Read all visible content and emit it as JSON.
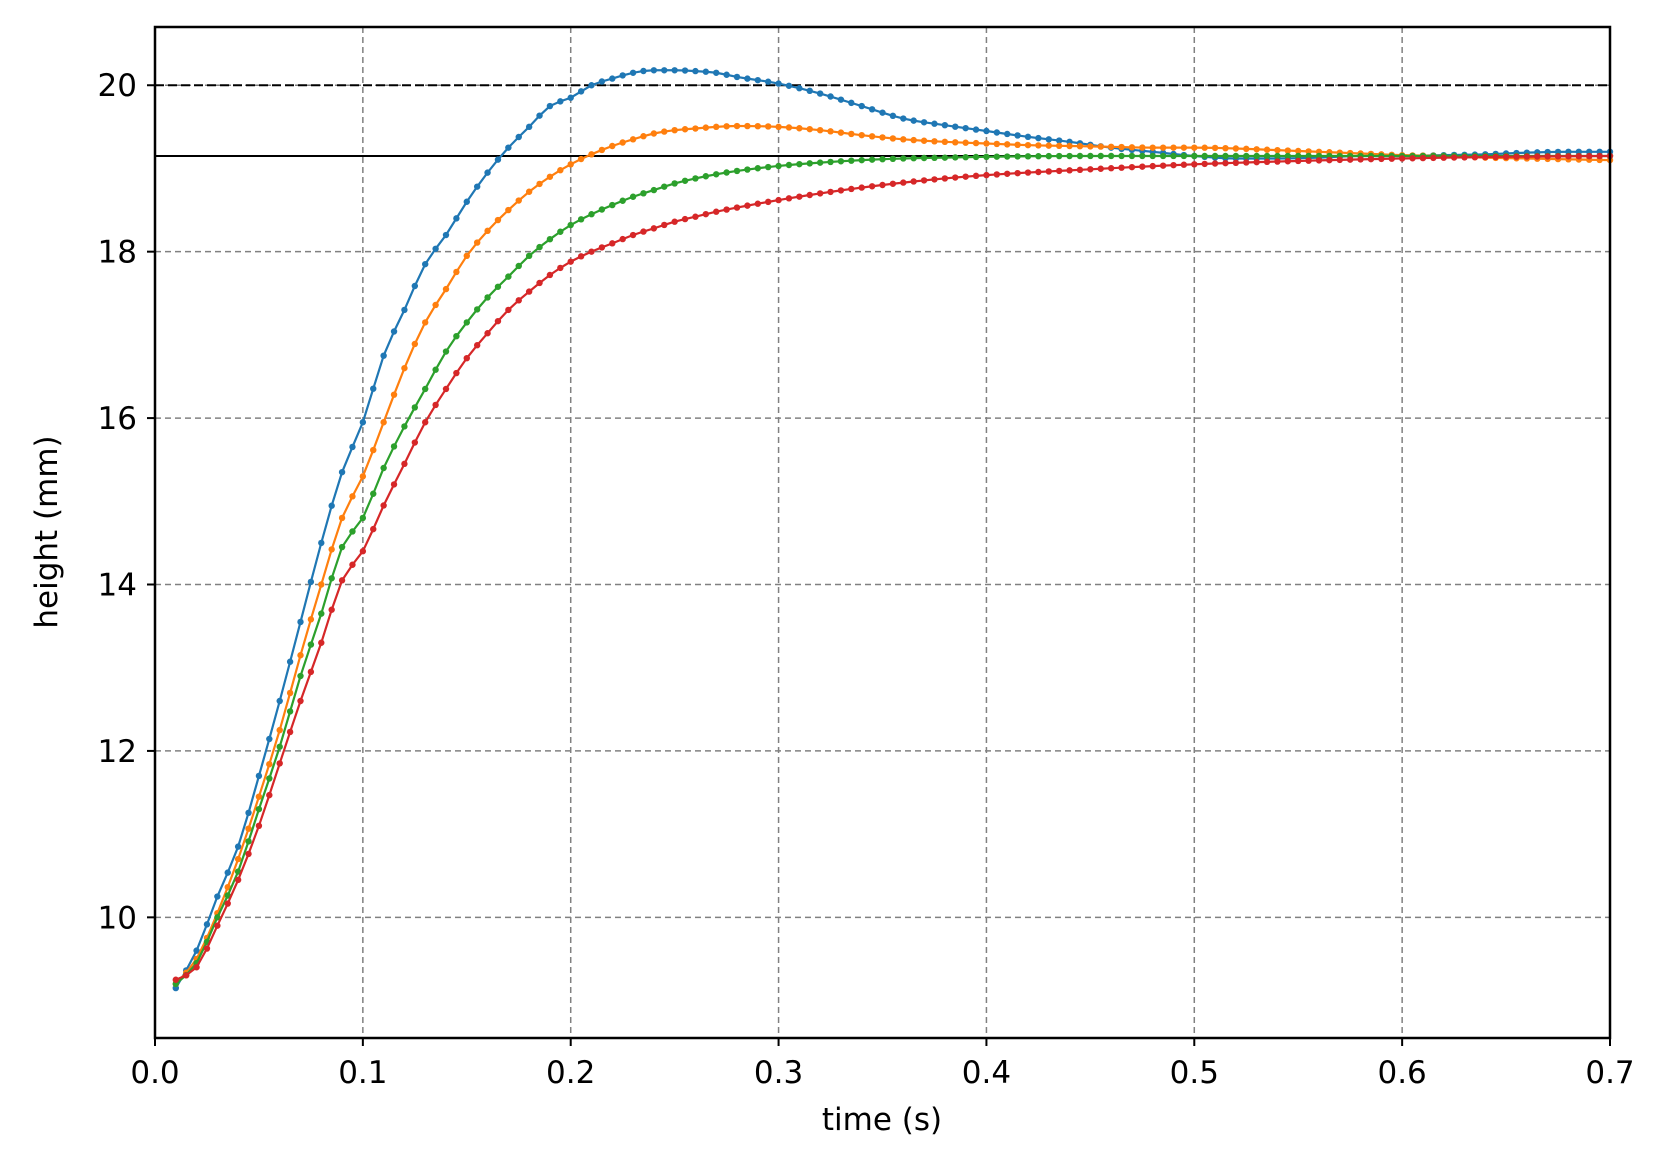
{
  "chart_data": {
    "type": "line",
    "title": "",
    "xlabel": "time (s)",
    "ylabel": "height (mm)",
    "xlim": [
      0.0,
      0.7
    ],
    "ylim": [
      8.55,
      20.7
    ],
    "x_ticks": [
      "0.0",
      "0.1",
      "0.2",
      "0.3",
      "0.4",
      "0.5",
      "0.6",
      "0.7"
    ],
    "y_ticks": [
      "10",
      "12",
      "14",
      "16",
      "18",
      "20"
    ],
    "grid": true,
    "markers": true,
    "x": {
      "start": 0.01,
      "stop": 0.7,
      "step": 0.005
    },
    "reference_lines": [
      {
        "y": 20.0,
        "style": "dashed",
        "color": "#000000"
      },
      {
        "y": 19.15,
        "style": "solid",
        "color": "#000000"
      }
    ],
    "series": [
      {
        "color": "#1f77b4",
        "points": [
          [
            0.01,
            9.15
          ],
          [
            0.02,
            9.6
          ],
          [
            0.03,
            10.25
          ],
          [
            0.04,
            10.85
          ],
          [
            0.05,
            11.7
          ],
          [
            0.06,
            12.6
          ],
          [
            0.07,
            13.55
          ],
          [
            0.08,
            14.5
          ],
          [
            0.09,
            15.35
          ],
          [
            0.1,
            15.95
          ],
          [
            0.11,
            16.75
          ],
          [
            0.12,
            17.3
          ],
          [
            0.13,
            17.85
          ],
          [
            0.14,
            18.2
          ],
          [
            0.15,
            18.6
          ],
          [
            0.16,
            18.95
          ],
          [
            0.17,
            19.25
          ],
          [
            0.18,
            19.5
          ],
          [
            0.19,
            19.75
          ],
          [
            0.2,
            19.85
          ],
          [
            0.21,
            20.0
          ],
          [
            0.22,
            20.08
          ],
          [
            0.23,
            20.15
          ],
          [
            0.24,
            20.18
          ],
          [
            0.25,
            20.18
          ],
          [
            0.26,
            20.17
          ],
          [
            0.27,
            20.15
          ],
          [
            0.28,
            20.1
          ],
          [
            0.3,
            20.02
          ],
          [
            0.32,
            19.9
          ],
          [
            0.34,
            19.75
          ],
          [
            0.36,
            19.6
          ],
          [
            0.38,
            19.52
          ],
          [
            0.4,
            19.45
          ],
          [
            0.42,
            19.38
          ],
          [
            0.44,
            19.32
          ],
          [
            0.46,
            19.25
          ],
          [
            0.48,
            19.2
          ],
          [
            0.5,
            19.15
          ],
          [
            0.52,
            19.12
          ],
          [
            0.54,
            19.12
          ],
          [
            0.56,
            19.13
          ],
          [
            0.58,
            19.15
          ],
          [
            0.6,
            19.15
          ],
          [
            0.62,
            19.16
          ],
          [
            0.64,
            19.17
          ],
          [
            0.66,
            19.19
          ],
          [
            0.68,
            19.2
          ],
          [
            0.7,
            19.2
          ]
        ]
      },
      {
        "color": "#ff7f0e",
        "points": [
          [
            0.01,
            9.2
          ],
          [
            0.02,
            9.5
          ],
          [
            0.03,
            10.05
          ],
          [
            0.04,
            10.7
          ],
          [
            0.05,
            11.45
          ],
          [
            0.06,
            12.25
          ],
          [
            0.07,
            13.15
          ],
          [
            0.08,
            14.0
          ],
          [
            0.09,
            14.8
          ],
          [
            0.1,
            15.3
          ],
          [
            0.11,
            15.95
          ],
          [
            0.12,
            16.6
          ],
          [
            0.13,
            17.15
          ],
          [
            0.14,
            17.55
          ],
          [
            0.15,
            17.95
          ],
          [
            0.16,
            18.25
          ],
          [
            0.17,
            18.5
          ],
          [
            0.18,
            18.72
          ],
          [
            0.19,
            18.9
          ],
          [
            0.2,
            19.05
          ],
          [
            0.21,
            19.17
          ],
          [
            0.22,
            19.27
          ],
          [
            0.23,
            19.35
          ],
          [
            0.24,
            19.42
          ],
          [
            0.25,
            19.46
          ],
          [
            0.26,
            19.48
          ],
          [
            0.27,
            19.5
          ],
          [
            0.28,
            19.51
          ],
          [
            0.3,
            19.5
          ],
          [
            0.32,
            19.46
          ],
          [
            0.34,
            19.4
          ],
          [
            0.36,
            19.35
          ],
          [
            0.38,
            19.32
          ],
          [
            0.4,
            19.3
          ],
          [
            0.42,
            19.28
          ],
          [
            0.44,
            19.27
          ],
          [
            0.46,
            19.26
          ],
          [
            0.48,
            19.25
          ],
          [
            0.5,
            19.25
          ],
          [
            0.52,
            19.24
          ],
          [
            0.54,
            19.22
          ],
          [
            0.56,
            19.2
          ],
          [
            0.58,
            19.18
          ],
          [
            0.6,
            19.16
          ],
          [
            0.62,
            19.15
          ],
          [
            0.64,
            19.13
          ],
          [
            0.66,
            19.12
          ],
          [
            0.68,
            19.11
          ],
          [
            0.7,
            19.1
          ]
        ]
      },
      {
        "color": "#2ca02c",
        "points": [
          [
            0.01,
            9.2
          ],
          [
            0.02,
            9.45
          ],
          [
            0.03,
            10.0
          ],
          [
            0.04,
            10.55
          ],
          [
            0.05,
            11.3
          ],
          [
            0.06,
            12.05
          ],
          [
            0.07,
            12.9
          ],
          [
            0.08,
            13.65
          ],
          [
            0.09,
            14.45
          ],
          [
            0.1,
            14.8
          ],
          [
            0.11,
            15.4
          ],
          [
            0.12,
            15.9
          ],
          [
            0.13,
            16.35
          ],
          [
            0.14,
            16.8
          ],
          [
            0.15,
            17.15
          ],
          [
            0.16,
            17.45
          ],
          [
            0.17,
            17.7
          ],
          [
            0.18,
            17.95
          ],
          [
            0.19,
            18.15
          ],
          [
            0.2,
            18.32
          ],
          [
            0.21,
            18.45
          ],
          [
            0.22,
            18.56
          ],
          [
            0.23,
            18.66
          ],
          [
            0.24,
            18.74
          ],
          [
            0.25,
            18.82
          ],
          [
            0.26,
            18.88
          ],
          [
            0.27,
            18.93
          ],
          [
            0.28,
            18.97
          ],
          [
            0.3,
            19.03
          ],
          [
            0.32,
            19.07
          ],
          [
            0.34,
            19.1
          ],
          [
            0.36,
            19.12
          ],
          [
            0.38,
            19.13
          ],
          [
            0.4,
            19.14
          ],
          [
            0.45,
            19.15
          ],
          [
            0.5,
            19.15
          ],
          [
            0.55,
            19.15
          ],
          [
            0.6,
            19.15
          ],
          [
            0.65,
            19.15
          ],
          [
            0.7,
            19.15
          ]
        ]
      },
      {
        "color": "#d62728",
        "points": [
          [
            0.01,
            9.25
          ],
          [
            0.02,
            9.4
          ],
          [
            0.03,
            9.9
          ],
          [
            0.04,
            10.45
          ],
          [
            0.05,
            11.1
          ],
          [
            0.06,
            11.85
          ],
          [
            0.07,
            12.6
          ],
          [
            0.08,
            13.3
          ],
          [
            0.09,
            14.05
          ],
          [
            0.1,
            14.4
          ],
          [
            0.11,
            14.95
          ],
          [
            0.12,
            15.45
          ],
          [
            0.13,
            15.95
          ],
          [
            0.14,
            16.35
          ],
          [
            0.15,
            16.72
          ],
          [
            0.16,
            17.02
          ],
          [
            0.17,
            17.3
          ],
          [
            0.18,
            17.52
          ],
          [
            0.19,
            17.72
          ],
          [
            0.2,
            17.88
          ],
          [
            0.21,
            18.0
          ],
          [
            0.22,
            18.1
          ],
          [
            0.23,
            18.2
          ],
          [
            0.24,
            18.28
          ],
          [
            0.25,
            18.36
          ],
          [
            0.26,
            18.42
          ],
          [
            0.27,
            18.48
          ],
          [
            0.28,
            18.53
          ],
          [
            0.3,
            18.62
          ],
          [
            0.32,
            18.7
          ],
          [
            0.34,
            18.77
          ],
          [
            0.36,
            18.83
          ],
          [
            0.38,
            18.88
          ],
          [
            0.4,
            18.92
          ],
          [
            0.45,
            18.99
          ],
          [
            0.5,
            19.05
          ],
          [
            0.55,
            19.09
          ],
          [
            0.6,
            19.12
          ],
          [
            0.65,
            19.14
          ],
          [
            0.7,
            19.15
          ]
        ]
      }
    ]
  }
}
